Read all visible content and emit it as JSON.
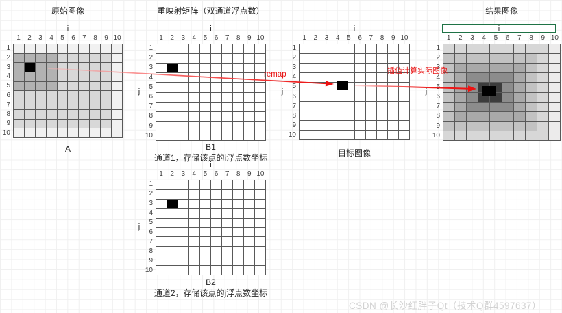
{
  "watermark": "CSDN @长沙红胖子Qt（技术Q群4597637）",
  "annotations": {
    "remap": "remap",
    "interpolation_note": "插值计算实际图像"
  },
  "axis_numbers": [
    "1",
    "2",
    "3",
    "4",
    "5",
    "6",
    "7",
    "8",
    "9",
    "10"
  ],
  "legend": {
    "W": "#ffffff",
    "K": "#000000",
    "L": "#f1f1f1",
    "M": "#d8d8d8",
    "D": "#b2b2b2",
    "0": "#3c3c3c",
    "1": "#8c8c8c",
    "2": "#a9a9a9",
    "3": "#c2c2c2",
    "4": "#d7d7d7",
    "5": "#ecebeb"
  },
  "grids": [
    {
      "id": "original",
      "title": "原始图像",
      "axis_i": "i",
      "axis_j": "",
      "label_below": "A",
      "caption": "",
      "selected_i_box": false,
      "black_cell": {
        "col": 2,
        "row": 3
      },
      "matrix": [
        "LLLLLLLLLL",
        "DDDDMMMMML",
        "DKDDMMMMML",
        "DDDDMMMMML",
        "DDDDMMMMML",
        "MMMMMMMMML",
        "MMMMMMMMML",
        "MMMMMMMMML",
        "MMMMMMMMML",
        "LLLLLLLLLL"
      ]
    },
    {
      "id": "b1",
      "title": "重映射矩阵（双通道浮点数）",
      "axis_i": "i",
      "axis_j": "j",
      "label_below": "B1",
      "caption": "通道1，存储该点的i浮点数坐标",
      "selected_i_box": false,
      "black_cell": {
        "col": 2,
        "row": 3
      },
      "matrix": [
        "WWWWWWWWWW",
        "WWWWWWWWWW",
        "WKWWWWWWWW",
        "WWWWWWWWWW",
        "WWWWWWWWWW",
        "WWWWWWWWWW",
        "WWWWWWWWWW",
        "WWWWWWWWWW",
        "WWWWWWWWWW",
        "WWWWWWWWWW"
      ]
    },
    {
      "id": "target",
      "title": "",
      "axis_i": "i",
      "axis_j": "j",
      "label_below": "目标图像",
      "caption": "",
      "selected_i_box": false,
      "float_point": {
        "i": 4.4,
        "j": 4.8
      },
      "matrix": [
        "WWWWWWWWWW",
        "WWWWWWWWWW",
        "WWWWWWWWWW",
        "WWWWWWWWWW",
        "WWWWWWWWWW",
        "WWWWWWWWWW",
        "WWWWWWWWWW",
        "WWWWWWWWWW",
        "WWWWWWWWWW",
        "WWWWWWWWWW"
      ]
    },
    {
      "id": "result",
      "title": "结果图像",
      "axis_i": "i",
      "axis_j": "j",
      "label_below": "",
      "caption": "",
      "selected_i_box": true,
      "float_point": {
        "i": 4.4,
        "j": 5.4
      },
      "matrix": [
        "4444444445",
        "3333333345",
        "3222222345",
        "3211112345",
        "3210012345",
        "3210012345",
        "3211112345",
        "3222222345",
        "3333333345",
        "4444444445"
      ]
    },
    {
      "id": "b2",
      "title": "",
      "axis_i": "i",
      "axis_j": "j",
      "label_below": "B2",
      "caption": "通道2，存储该点的j浮点数坐标",
      "selected_i_box": false,
      "black_cell": {
        "col": 2,
        "row": 3
      },
      "matrix": [
        "WWWWWWWWWW",
        "WWWWWWWWWW",
        "WKWWWWWWWW",
        "WWWWWWWWWW",
        "WWWWWWWWWW",
        "WWWWWWWWWW",
        "WWWWWWWWWW",
        "WWWWWWWWWW",
        "WWWWWWWWWW",
        "WWWWWWWWWW"
      ]
    }
  ]
}
